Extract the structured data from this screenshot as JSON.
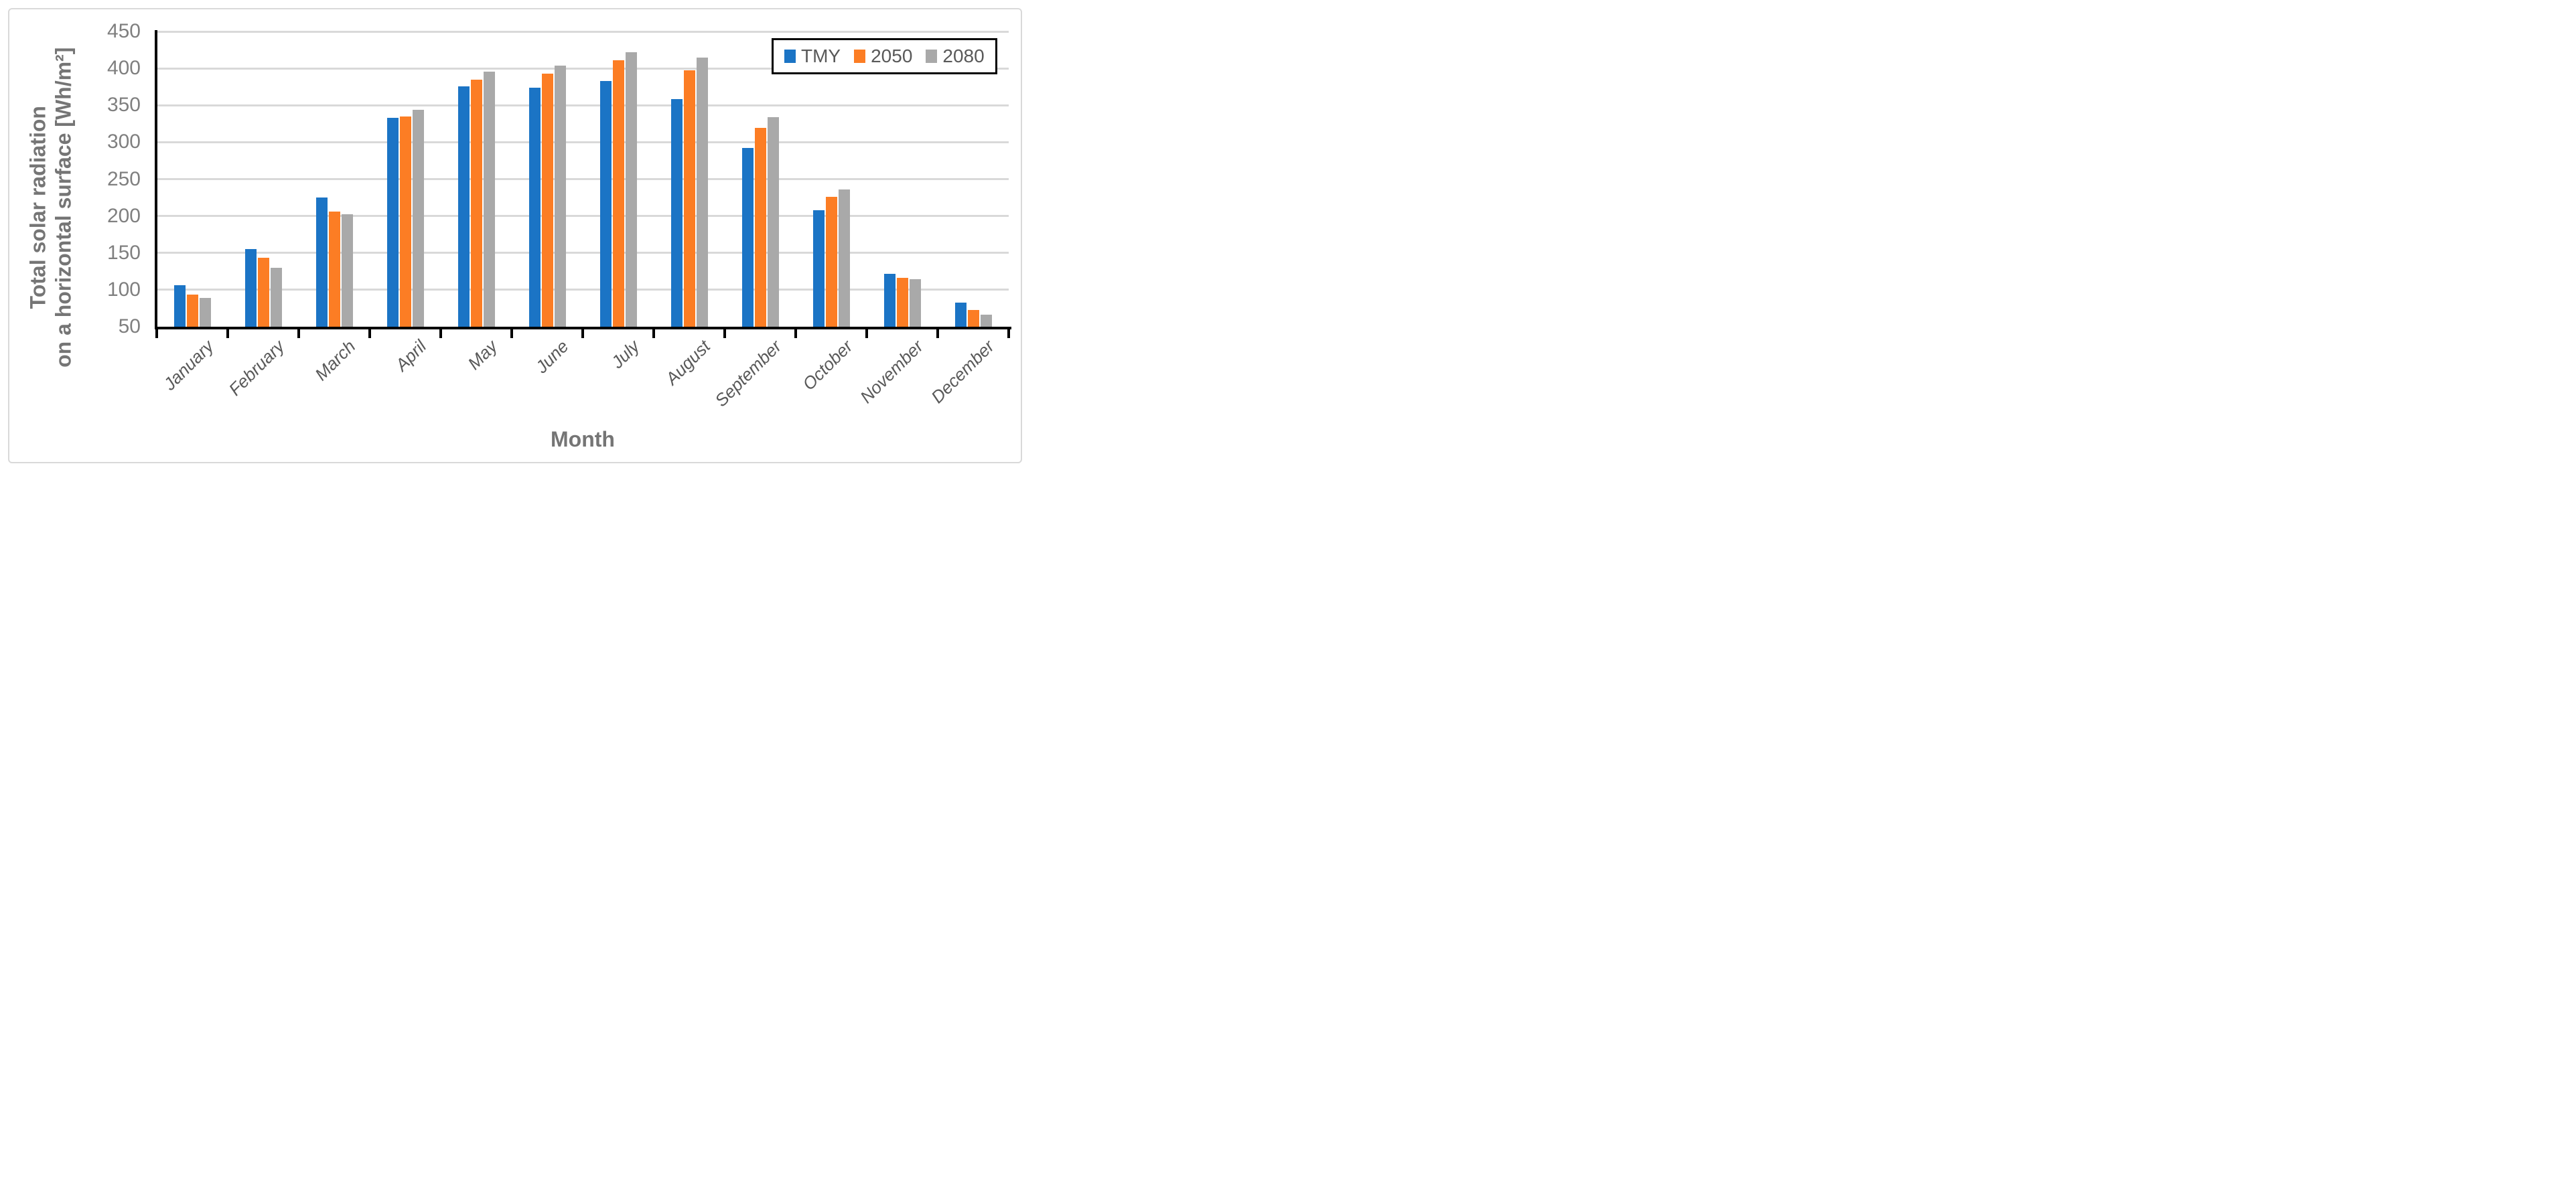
{
  "chart_data": {
    "type": "bar",
    "title": "",
    "xlabel": "Month",
    "ylabel_line1": "Total solar radiation",
    "ylabel_line2": "on a horizontal surface [Wh/m²]",
    "ylim": [
      50,
      450
    ],
    "yticks": [
      450,
      400,
      350,
      300,
      250,
      200,
      150,
      100,
      50
    ],
    "grid": true,
    "legend_position": "top-right",
    "categories": [
      "January",
      "February",
      "March",
      "April",
      "May",
      "June",
      "July",
      "August",
      "September",
      "October",
      "November",
      "December"
    ],
    "series": [
      {
        "name": "TMY",
        "color": "#1b74c5",
        "values": [
          106,
          155,
          225,
          333,
          376,
          374,
          383,
          358,
          292,
          208,
          122,
          83
        ]
      },
      {
        "name": "2050",
        "color": "#fc7d24",
        "values": [
          94,
          143,
          206,
          335,
          385,
          393,
          411,
          397,
          319,
          226,
          116,
          73
        ]
      },
      {
        "name": "2080",
        "color": "#a9a9a9",
        "values": [
          89,
          130,
          202,
          344,
          396,
          404,
          422,
          415,
          334,
          236,
          114,
          66
        ]
      }
    ]
  },
  "colors": {
    "gridline": "#d9d9d9",
    "axis": "#000000",
    "tick_text": "#7f7f7f",
    "category_text": "#595959",
    "title_text": "#757575",
    "frame_border": "#d9d9d9",
    "background": "#ffffff"
  }
}
